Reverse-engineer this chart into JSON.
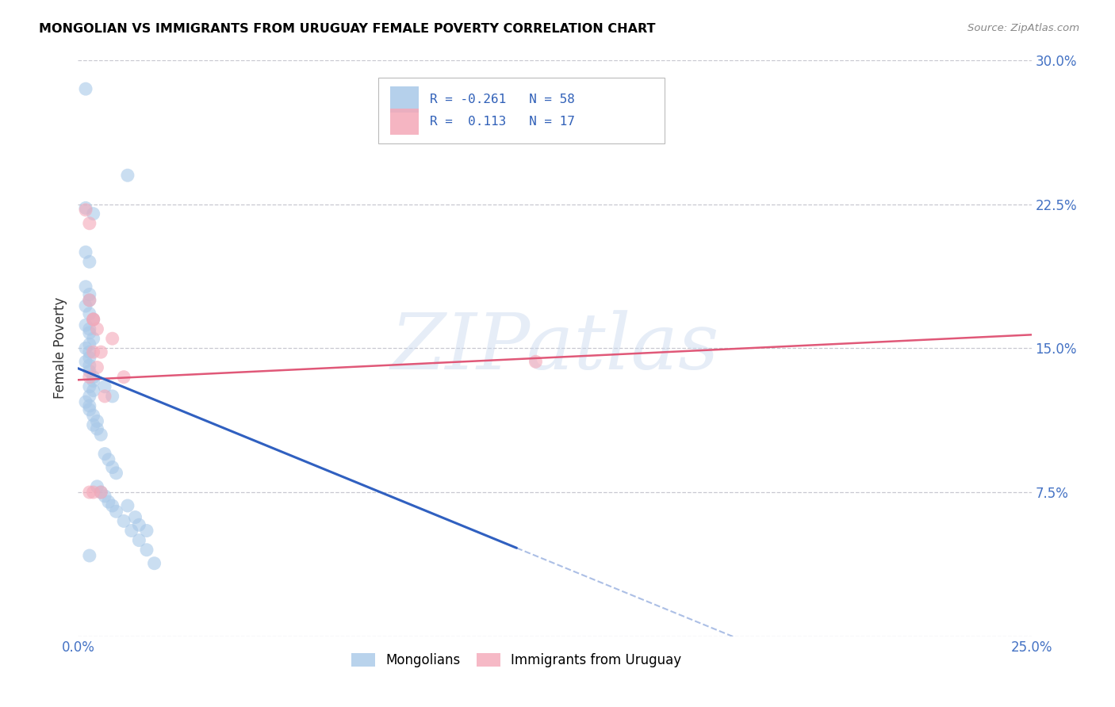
{
  "title": "MONGOLIAN VS IMMIGRANTS FROM URUGUAY FEMALE POVERTY CORRELATION CHART",
  "source": "Source: ZipAtlas.com",
  "ylabel_label": "Female Poverty",
  "xlim": [
    0.0,
    0.25
  ],
  "ylim": [
    0.0,
    0.3
  ],
  "xtick_vals": [
    0.0,
    0.05,
    0.1,
    0.15,
    0.2,
    0.25
  ],
  "ytick_vals": [
    0.0,
    0.075,
    0.15,
    0.225,
    0.3
  ],
  "blue_color": "#a8c8e8",
  "pink_color": "#f4a8b8",
  "blue_line_color": "#3060c0",
  "pink_line_color": "#e05878",
  "watermark": "ZIPatlas",
  "legend_label_blue": "Mongolians",
  "legend_label_pink": "Immigrants from Uruguay",
  "mongolian_R": -0.261,
  "mongolian_N": 58,
  "uruguay_R": 0.113,
  "uruguay_N": 17,
  "mongolians_x": [
    0.002,
    0.013,
    0.002,
    0.004,
    0.002,
    0.003,
    0.002,
    0.003,
    0.003,
    0.002,
    0.003,
    0.004,
    0.002,
    0.003,
    0.003,
    0.004,
    0.003,
    0.002,
    0.003,
    0.003,
    0.002,
    0.003,
    0.003,
    0.004,
    0.004,
    0.003,
    0.004,
    0.003,
    0.002,
    0.003,
    0.007,
    0.009,
    0.003,
    0.004,
    0.005,
    0.004,
    0.005,
    0.006,
    0.007,
    0.008,
    0.009,
    0.01,
    0.013,
    0.015,
    0.016,
    0.018,
    0.003,
    0.005,
    0.006,
    0.007,
    0.008,
    0.009,
    0.01,
    0.012,
    0.014,
    0.016,
    0.018,
    0.02
  ],
  "mongolians_y": [
    0.285,
    0.24,
    0.223,
    0.22,
    0.2,
    0.195,
    0.182,
    0.178,
    0.175,
    0.172,
    0.168,
    0.165,
    0.162,
    0.16,
    0.158,
    0.155,
    0.152,
    0.15,
    0.148,
    0.145,
    0.143,
    0.141,
    0.138,
    0.135,
    0.133,
    0.13,
    0.128,
    0.125,
    0.122,
    0.12,
    0.13,
    0.125,
    0.118,
    0.115,
    0.112,
    0.11,
    0.108,
    0.105,
    0.095,
    0.092,
    0.088,
    0.085,
    0.068,
    0.062,
    0.058,
    0.055,
    0.042,
    0.078,
    0.075,
    0.073,
    0.07,
    0.068,
    0.065,
    0.06,
    0.055,
    0.05,
    0.045,
    0.038
  ],
  "uruguay_x": [
    0.002,
    0.003,
    0.003,
    0.004,
    0.005,
    0.004,
    0.005,
    0.003,
    0.004,
    0.006,
    0.007,
    0.009,
    0.012,
    0.12,
    0.003,
    0.004,
    0.006
  ],
  "uruguay_y": [
    0.222,
    0.215,
    0.175,
    0.165,
    0.16,
    0.148,
    0.14,
    0.135,
    0.165,
    0.148,
    0.125,
    0.155,
    0.135,
    0.143,
    0.075,
    0.075,
    0.075
  ],
  "blue_line_x0": 0.0,
  "blue_line_y0": 0.1395,
  "blue_line_x1": 0.115,
  "blue_line_y1": 0.046,
  "blue_line_solid_end": 0.115,
  "blue_line_dash_end": 0.25,
  "pink_line_x0": 0.0,
  "pink_line_y0": 0.1335,
  "pink_line_x1": 0.25,
  "pink_line_y1": 0.157
}
